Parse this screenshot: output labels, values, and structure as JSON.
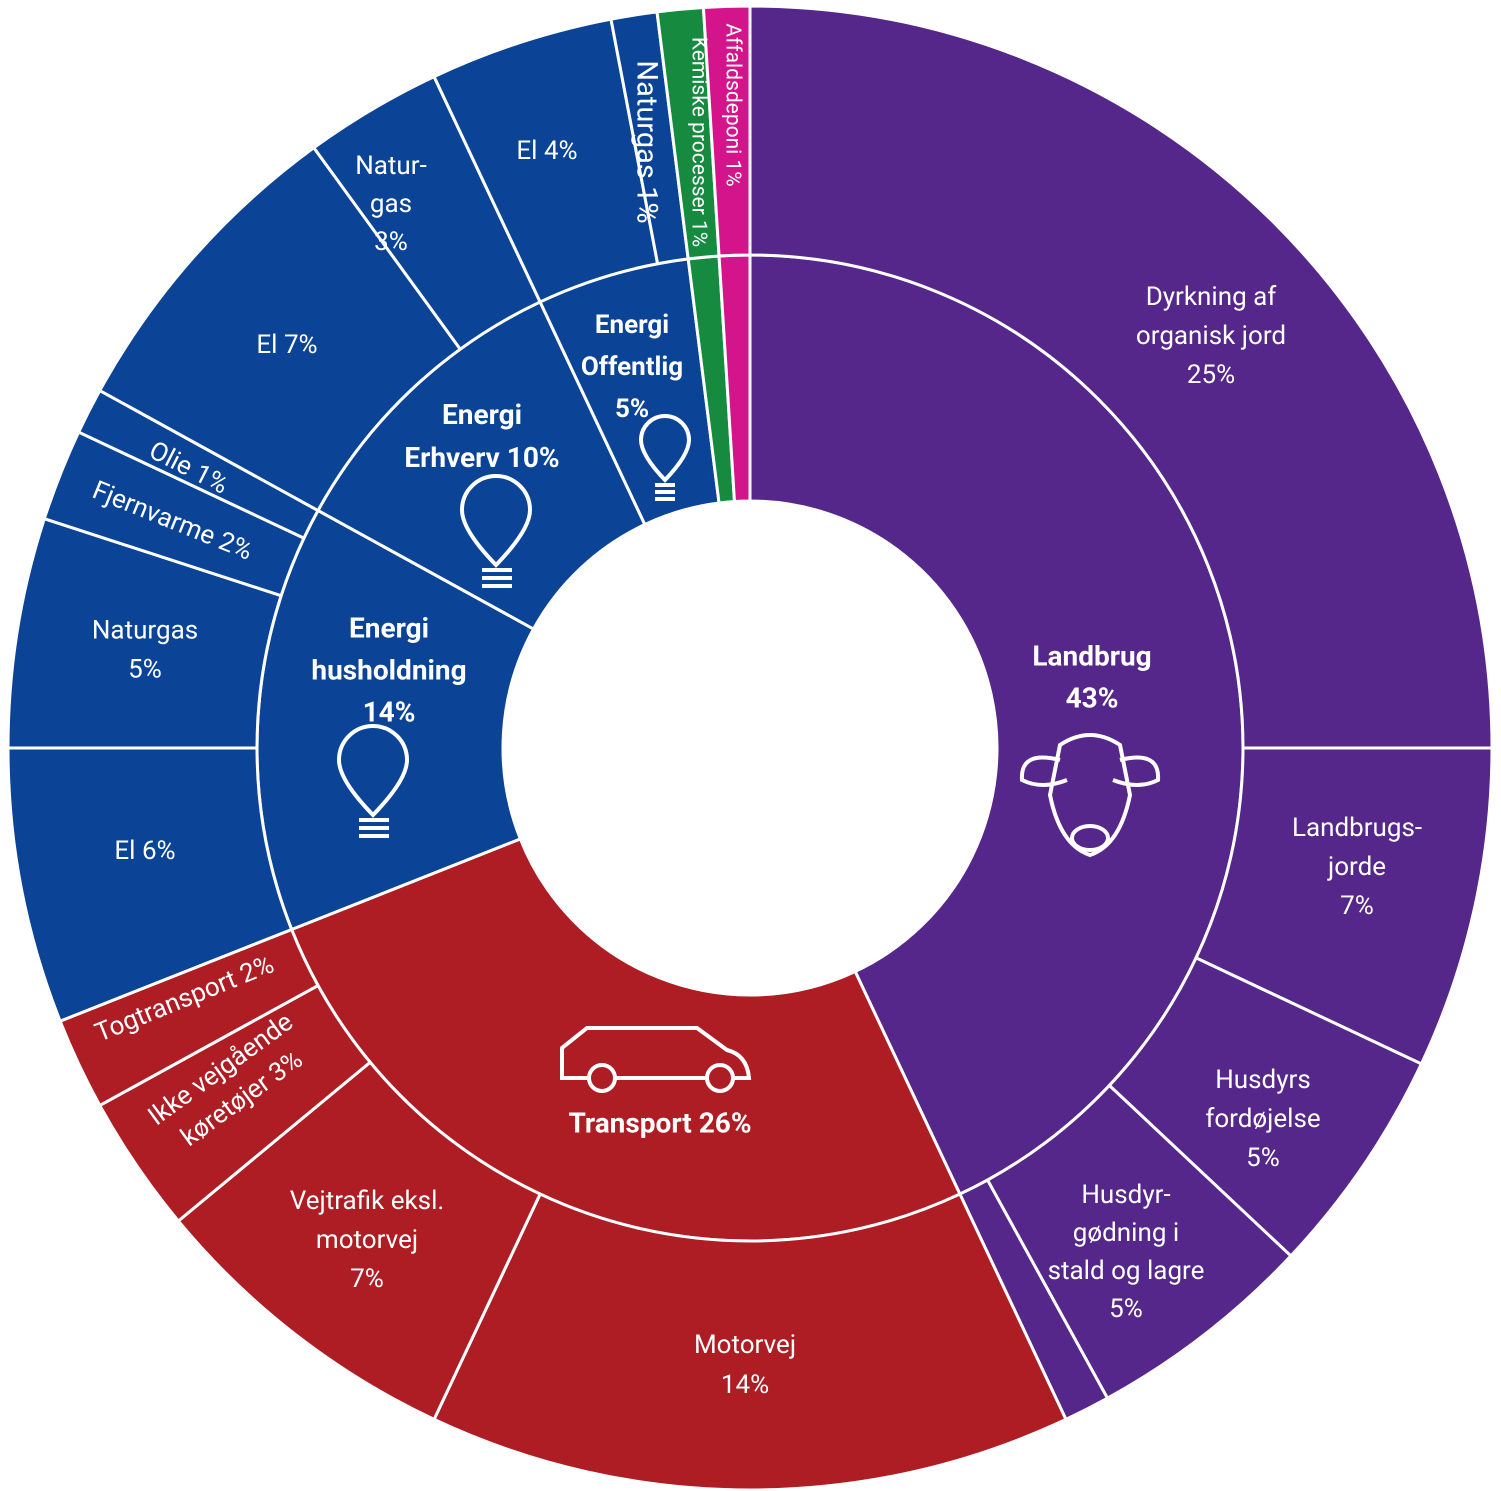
{
  "chart_data": {
    "type": "sunburst",
    "categories": [
      {
        "label": [
          "Landbrug",
          "43%"
        ],
        "value": 43,
        "color": "#55278a",
        "children": [
          {
            "label": [
              "Dyrkning af",
              "organisk jord",
              "25%"
            ],
            "value": 25
          },
          {
            "label": [
              "Landbrugs-",
              "jorde",
              "7%"
            ],
            "value": 7
          },
          {
            "label": [
              "Husdyrs",
              "fordøjelse",
              "5%"
            ],
            "value": 5
          },
          {
            "label": [
              "Husdyr-",
              "gødning i",
              "stald og lagre",
              "5%"
            ],
            "value": 5
          },
          {
            "label": null,
            "value": 1
          }
        ]
      },
      {
        "label": [
          "Transport 26%"
        ],
        "value": 26,
        "color": "#ad1d23",
        "children": [
          {
            "label": [
              "Motorvej",
              "14%"
            ],
            "value": 14
          },
          {
            "label": [
              "Vejtrafik eksl.",
              "motorvej",
              "7%"
            ],
            "value": 7
          },
          {
            "label": [
              "Ikke vejgående",
              "køretøjer 3%"
            ],
            "value": 3
          },
          {
            "label": [
              "Togtransport 2%"
            ],
            "value": 2
          }
        ]
      },
      {
        "label": [
          "Energi",
          "husholdning",
          "14%"
        ],
        "value": 14,
        "color": "#0b4496",
        "children": [
          {
            "label": [
              "El 6%"
            ],
            "value": 6
          },
          {
            "label": [
              "Naturgas",
              "5%"
            ],
            "value": 5
          },
          {
            "label": [
              "Fjernvarme 2%"
            ],
            "value": 2
          },
          {
            "label": [
              "Olie 1%"
            ],
            "value": 1
          }
        ]
      },
      {
        "label": [
          "Energi",
          "Erhverv 10%"
        ],
        "value": 10,
        "color": "#0b4496",
        "children": [
          {
            "label": [
              "El 7%"
            ],
            "value": 7
          },
          {
            "label": [
              "Natur-",
              "gas",
              "3%"
            ],
            "value": 3
          }
        ]
      },
      {
        "label": [
          "Energi",
          "Offentlig",
          "5%"
        ],
        "value": 5,
        "color": "#0b4496",
        "children": [
          {
            "label": [
              "El 4%"
            ],
            "value": 4
          },
          {
            "label": [
              "Naturgas 1%"
            ],
            "value": 1
          }
        ]
      },
      {
        "label": null,
        "value": 1,
        "color": "#168a3f",
        "children": [
          {
            "label": [
              "Kemiske processer 1%"
            ],
            "value": 1
          }
        ]
      },
      {
        "label": null,
        "value": 1,
        "color": "#d3148a",
        "children": [
          {
            "label": [
              "Affaldsdeponi 1%"
            ],
            "value": 1
          }
        ]
      }
    ]
  }
}
